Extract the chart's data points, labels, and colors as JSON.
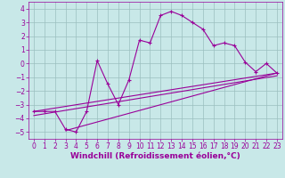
{
  "xlabel": "Windchill (Refroidissement éolien,°C)",
  "bg_color": "#c8e8e8",
  "line_color": "#990099",
  "grid_color": "#9bbfbf",
  "xlim": [
    -0.5,
    23.5
  ],
  "ylim": [
    -5.5,
    4.5
  ],
  "yticks": [
    -5,
    -4,
    -3,
    -2,
    -1,
    0,
    1,
    2,
    3,
    4
  ],
  "xticks": [
    0,
    1,
    2,
    3,
    4,
    5,
    6,
    7,
    8,
    9,
    10,
    11,
    12,
    13,
    14,
    15,
    16,
    17,
    18,
    19,
    20,
    21,
    22,
    23
  ],
  "line1_x": [
    0,
    1,
    2,
    3,
    4,
    5,
    6,
    7,
    8,
    9,
    10,
    11,
    12,
    13,
    14,
    15,
    16,
    17,
    18,
    19,
    20,
    21,
    22,
    23
  ],
  "line1_y": [
    -3.5,
    -3.5,
    -3.5,
    -4.8,
    -5.0,
    -3.5,
    0.2,
    -1.5,
    -3.0,
    -1.2,
    1.7,
    1.5,
    3.5,
    3.8,
    3.5,
    3.0,
    2.5,
    1.3,
    1.5,
    1.3,
    0.1,
    -0.6,
    0.0,
    -0.7
  ],
  "line2_x": [
    0,
    23
  ],
  "line2_y": [
    -3.5,
    -0.7
  ],
  "line3_x": [
    0,
    23
  ],
  "line3_y": [
    -3.8,
    -0.9
  ],
  "line4_x": [
    3,
    23
  ],
  "line4_y": [
    -4.9,
    -0.7
  ],
  "xlabel_fontsize": 6.5,
  "tick_fontsize": 5.5
}
